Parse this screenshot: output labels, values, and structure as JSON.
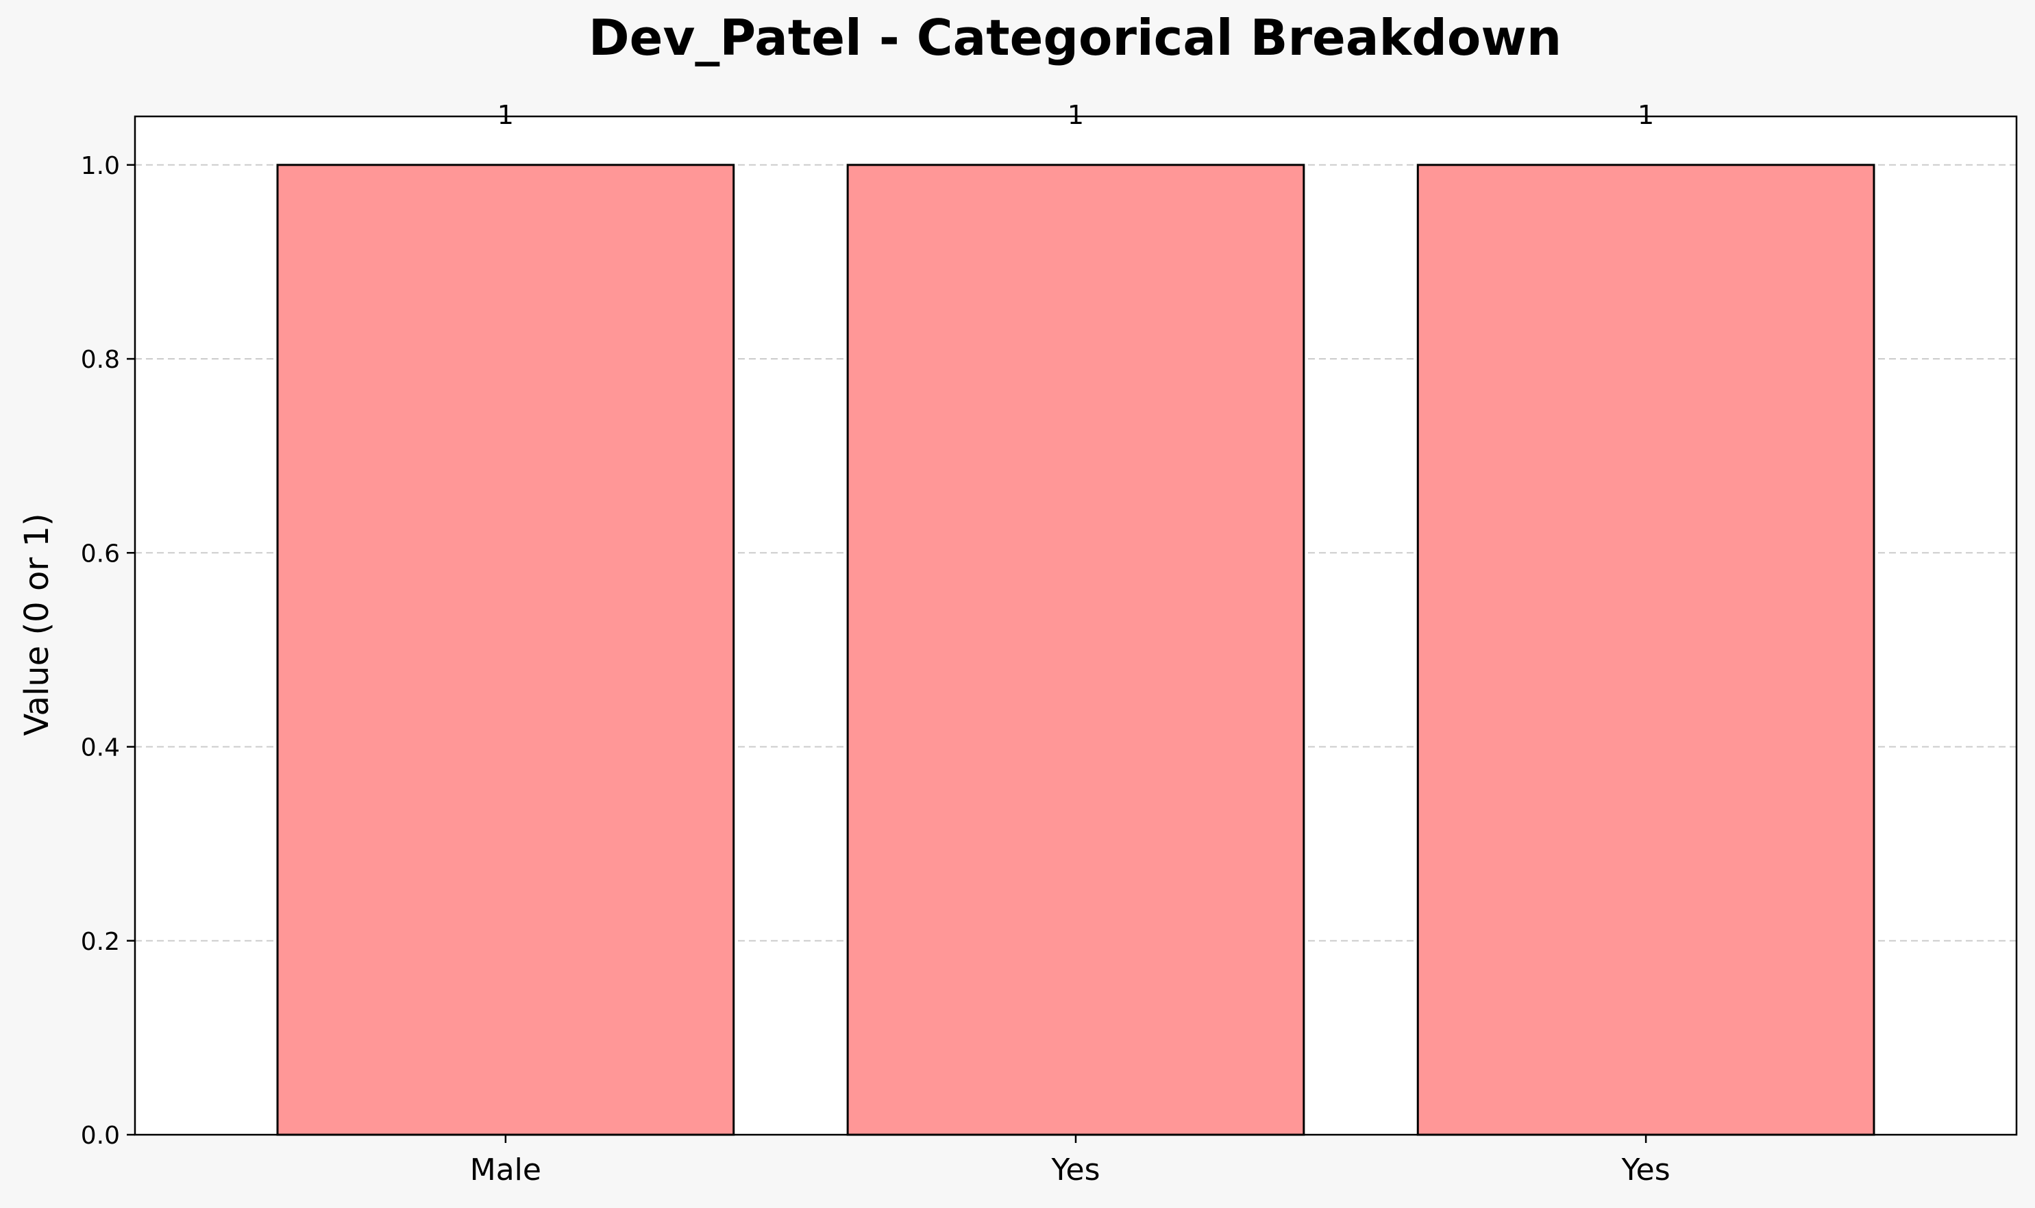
{
  "chart_data": {
    "type": "bar",
    "title": "Dev_Patel - Categorical Breakdown",
    "xlabel": "",
    "ylabel": "Value (0 or 1)",
    "categories": [
      "Male",
      "Yes",
      "Yes"
    ],
    "values": [
      1,
      1,
      1
    ],
    "data_labels": [
      "1",
      "1",
      "1"
    ],
    "ylim": [
      0,
      1.05
    ],
    "yticks": [
      0.0,
      0.2,
      0.4,
      0.6,
      0.8,
      1.0
    ],
    "ytick_labels": [
      "0.0",
      "0.2",
      "0.4",
      "0.6",
      "0.8",
      "1.0"
    ],
    "grid": "y-dashed",
    "legend": "none",
    "colors": {
      "bar_fill": "#ff9797",
      "bar_edge": "#000000",
      "grid": "#cccccc",
      "background": "#f7f7f7",
      "plot_background": "#ffffff"
    }
  }
}
